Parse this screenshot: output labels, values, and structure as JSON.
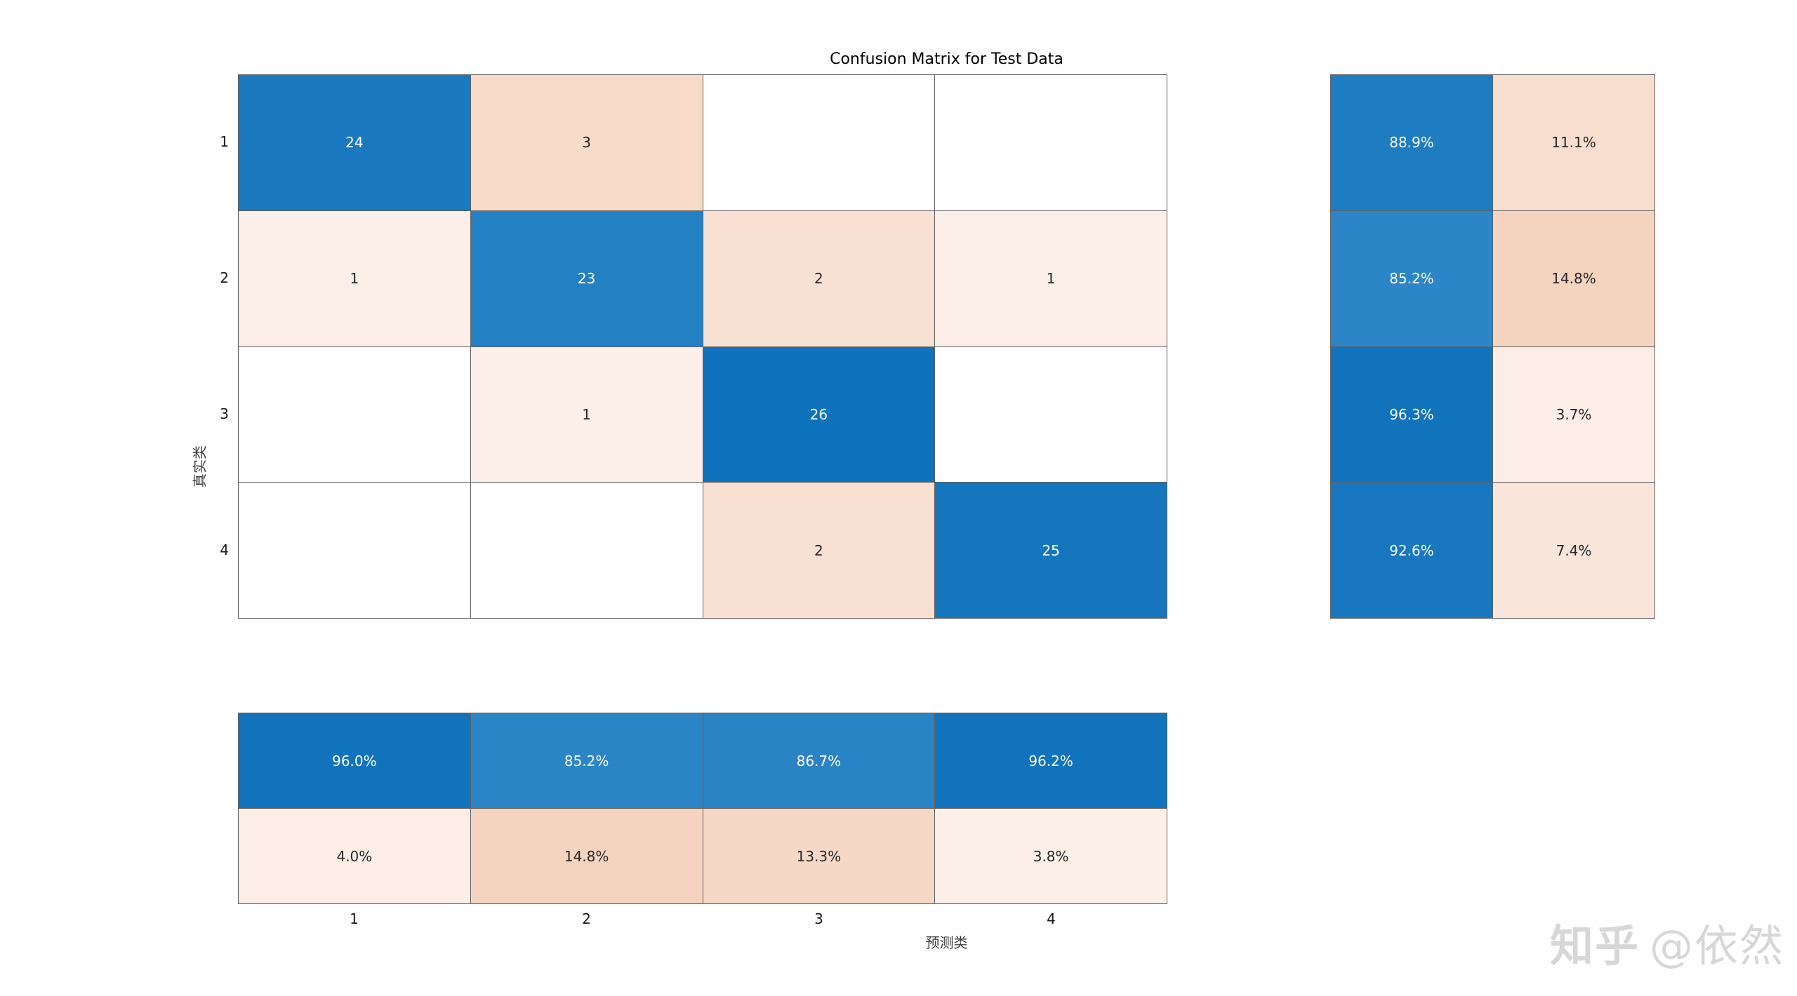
{
  "page": {
    "background": "#ffffff"
  },
  "chart_data": {
    "type": "heatmap",
    "subtype": "confusion-matrix",
    "title": "Confusion Matrix for Test Data",
    "xlabel": "预测类",
    "ylabel": "真实类",
    "row_labels": [
      "1",
      "2",
      "3",
      "4"
    ],
    "col_labels": [
      "1",
      "2",
      "3",
      "4"
    ],
    "grid_color": "#5f5f5f",
    "diagonal_color": "#1878bf",
    "matrix": {
      "values": [
        [
          "24",
          "3",
          "",
          ""
        ],
        [
          "1",
          "23",
          "2",
          "1"
        ],
        [
          "",
          "1",
          "26",
          ""
        ],
        [
          "",
          "",
          "2",
          "25"
        ]
      ],
      "colors": [
        [
          "#1b79c0",
          "#f6dbc8",
          "#ffffff",
          "#ffffff"
        ],
        [
          "#fcefe9",
          "#2280c3",
          "#f8e0d2",
          "#fcefe9"
        ],
        [
          "#ffffff",
          "#fcefe9",
          "#0e72bc",
          "#ffffff"
        ],
        [
          "#ffffff",
          "#ffffff",
          "#f8e0d2",
          "#1576be"
        ]
      ]
    },
    "row_summary": {
      "description": "per-row true-positive rate and false-negative rate",
      "values": [
        [
          "88.9%",
          "11.1%"
        ],
        [
          "85.2%",
          "14.8%"
        ],
        [
          "96.3%",
          "3.7%"
        ],
        [
          "92.6%",
          "7.4%"
        ]
      ],
      "colors": [
        [
          "#1e7cc1",
          "#f7decf"
        ],
        [
          "#2c85c6",
          "#f4d3bf"
        ],
        [
          "#1173bc",
          "#fceee7"
        ],
        [
          "#1877bf",
          "#fae5da"
        ]
      ]
    },
    "col_summary": {
      "description": "per-column positive predictive value and false discovery rate",
      "values": [
        [
          "96.0%",
          "85.2%",
          "86.7%",
          "96.2%"
        ],
        [
          "4.0%",
          "14.8%",
          "13.3%",
          "3.8%"
        ]
      ],
      "colors": [
        [
          "#1173bc",
          "#2c85c6",
          "#2a83c5",
          "#1173bc"
        ],
        [
          "#fceee7",
          "#f4d3bf",
          "#f6d8c6",
          "#fcefe8"
        ]
      ]
    }
  },
  "watermark": {
    "logo": "知乎",
    "handle": "@依然",
    "color": "#d7d7d7"
  }
}
